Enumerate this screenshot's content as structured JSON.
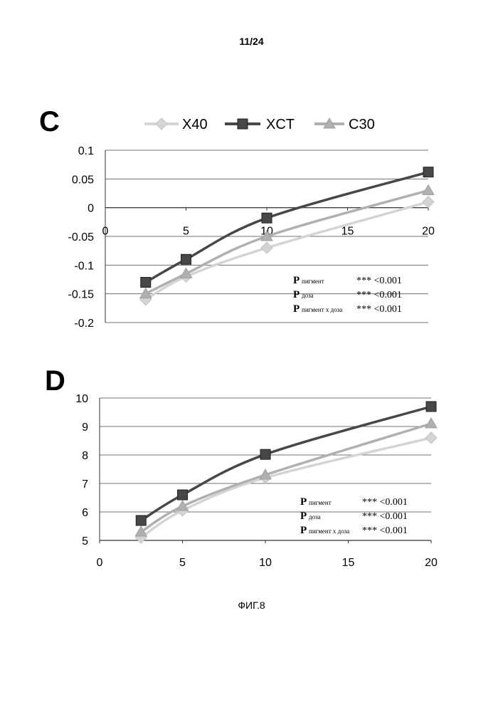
{
  "page_number": "11/24",
  "figure_caption": "ФИГ.8",
  "colors": {
    "X40": "#d4d4d4",
    "XCT": "#474747",
    "C30": "#b0b0b0"
  },
  "chart_data": [
    {
      "panel_label": "C",
      "type": "line",
      "x": [
        2.5,
        5,
        10,
        20
      ],
      "series": [
        {
          "name": "X40",
          "marker": "diamond",
          "values": [
            -0.16,
            -0.12,
            -0.07,
            0.01
          ]
        },
        {
          "name": "XCT",
          "marker": "square",
          "values": [
            -0.13,
            -0.09,
            -0.018,
            0.062
          ]
        },
        {
          "name": "C30",
          "marker": "triangle",
          "values": [
            -0.15,
            -0.115,
            -0.05,
            0.03
          ]
        }
      ],
      "xlim": [
        0,
        20
      ],
      "ylim": [
        -0.2,
        0.1
      ],
      "xticks": [
        "0",
        "5",
        "10",
        "15",
        "20"
      ],
      "yticks": [
        "0.1",
        "0.05",
        "0",
        "-0.05",
        "-0.1",
        "-0.15",
        "-0.2"
      ],
      "grid": true,
      "legend_position": "top",
      "stats": [
        {
          "p": "P",
          "sub": "пигмент",
          "value": "*** <0.001"
        },
        {
          "p": "P",
          "sub": "доза",
          "value": "*** <0.001"
        },
        {
          "p": "P",
          "sub": "пигмент х доза",
          "value": "*** <0.001"
        }
      ]
    },
    {
      "panel_label": "D",
      "type": "line",
      "x": [
        2.5,
        5,
        10,
        20
      ],
      "series": [
        {
          "name": "X40",
          "marker": "diamond",
          "values": [
            5.1,
            6.05,
            7.2,
            8.6
          ]
        },
        {
          "name": "XCT",
          "marker": "square",
          "values": [
            5.7,
            6.6,
            8.02,
            9.7
          ]
        },
        {
          "name": "C30",
          "marker": "triangle",
          "values": [
            5.3,
            6.2,
            7.3,
            9.1
          ]
        }
      ],
      "xlim": [
        0,
        20
      ],
      "ylim": [
        5,
        10
      ],
      "xticks": [
        "0",
        "5",
        "10",
        "15",
        "20"
      ],
      "yticks": [
        "10",
        "9",
        "8",
        "7",
        "6",
        "5"
      ],
      "grid": true,
      "stats": [
        {
          "p": "P",
          "sub": "пигмент",
          "value": "*** <0.001"
        },
        {
          "p": "P",
          "sub": "доза",
          "value": "*** <0.001"
        },
        {
          "p": "P",
          "sub": "пигмент х доза",
          "value": "*** <0.001"
        }
      ]
    }
  ]
}
